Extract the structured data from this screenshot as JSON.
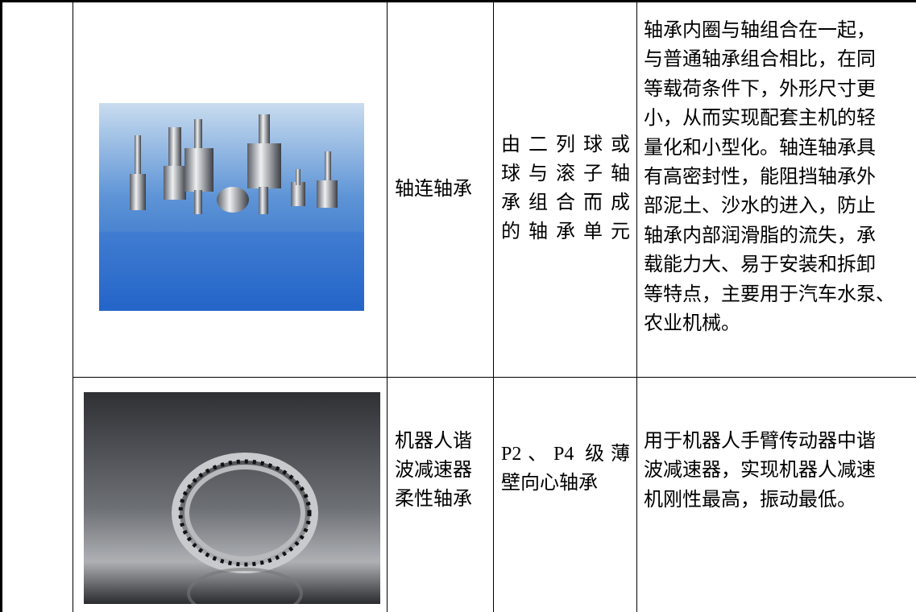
{
  "table": {
    "rows": [
      {
        "name": [
          "轴连轴承"
        ],
        "composition": [
          "由二列球或",
          "球与滚子轴",
          "承组合而成",
          "的轴承单元"
        ],
        "description": [
          "轴承内圈与轴组合在一起，",
          "与普通轴承组合相比，在同",
          "等载荷条件下，外形尺寸更",
          "小，从而实现配套主机的轻",
          "量化和小型化。轴连轴承具",
          "有高密封性，能阻挡轴承外",
          "部泥土、沙水的进入，防止",
          "轴承内部润滑脂的流失，承",
          "载能力大、易于安装和拆卸",
          "等特点，主要用于汽车水泵、",
          "农业机械。"
        ]
      },
      {
        "name": [
          "机器人谐",
          "波减速器",
          "柔性轴承"
        ],
        "composition": [
          "P2、P4 级薄",
          "壁向心轴承"
        ],
        "description": [
          "用于机器人手臂传动器中谐",
          "波减速器，实现机器人减速",
          "机刚性最高，振动最低。"
        ]
      }
    ]
  }
}
